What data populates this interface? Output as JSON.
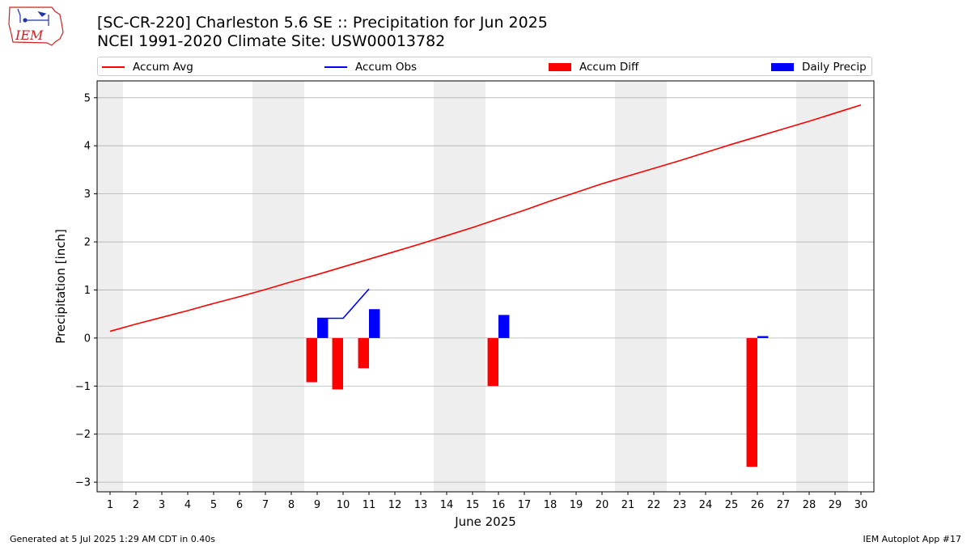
{
  "title": "[SC-CR-220] Charleston 5.6 SE :: Precipitation for Jun 2025",
  "subtitle": "NCEI 1991-2020 Climate Site: USW00013782",
  "logo_text": "IEM",
  "footer_left": "Generated at 5 Jul 2025 1:29 AM CDT in 0.40s",
  "footer_right": "IEM Autoplot App #17",
  "colors": {
    "accum_avg": "#ff0000",
    "accum_obs": "#0000ff",
    "accum_diff": "#ff0000",
    "daily_precip": "#0000ff",
    "weekend_shade": "#eeeeee",
    "grid": "#b0b0b0"
  },
  "chart_data": {
    "type": "bar",
    "xlabel": "June 2025",
    "ylabel": "Precipitation [inch]",
    "xlim": [
      0.5,
      30.5
    ],
    "ylim": [
      -3.2,
      5.35
    ],
    "grid": "horizontal",
    "legend_position": "top",
    "x": [
      1,
      2,
      3,
      4,
      5,
      6,
      7,
      8,
      9,
      10,
      11,
      12,
      13,
      14,
      15,
      16,
      17,
      18,
      19,
      20,
      21,
      22,
      23,
      24,
      25,
      26,
      27,
      28,
      29,
      30
    ],
    "x_tick_labels": [
      "1",
      "2",
      "3",
      "4",
      "5",
      "6",
      "7",
      "8",
      "9",
      "10",
      "11",
      "12",
      "13",
      "14",
      "15",
      "16",
      "17",
      "18",
      "19",
      "20",
      "21",
      "22",
      "23",
      "24",
      "25",
      "26",
      "27",
      "28",
      "29",
      "30"
    ],
    "y_ticks": [
      -3,
      -2,
      -1,
      0,
      1,
      2,
      3,
      4,
      5
    ],
    "y_tick_labels": [
      "−3",
      "−2",
      "−1",
      "0",
      "1",
      "2",
      "3",
      "4",
      "5"
    ],
    "weekend_shading": [
      [
        0.5,
        1.5
      ],
      [
        6.5,
        8.5
      ],
      [
        13.5,
        15.5
      ],
      [
        20.5,
        22.5
      ],
      [
        27.5,
        29.5
      ]
    ],
    "series": [
      {
        "name": "Accum Avg",
        "kind": "line",
        "x": [
          1,
          2,
          3,
          4,
          5,
          6,
          7,
          8,
          9,
          10,
          11,
          12,
          13,
          14,
          15,
          16,
          17,
          18,
          19,
          20,
          21,
          22,
          23,
          24,
          25,
          26,
          27,
          28,
          29,
          30
        ],
        "values": [
          0.14,
          0.29,
          0.43,
          0.57,
          0.72,
          0.86,
          1.01,
          1.17,
          1.32,
          1.48,
          1.64,
          1.8,
          1.96,
          2.13,
          2.3,
          2.48,
          2.66,
          2.85,
          3.03,
          3.21,
          3.37,
          3.53,
          3.69,
          3.86,
          4.03,
          4.19,
          4.35,
          4.51,
          4.68,
          4.85
        ]
      },
      {
        "name": "Accum Obs",
        "kind": "line",
        "x": [
          9,
          10,
          11
        ],
        "values": [
          0.41,
          0.41,
          1.02
        ]
      },
      {
        "name": "Accum Diff",
        "kind": "bar",
        "x": [
          9,
          10,
          11,
          16,
          26
        ],
        "values": [
          -0.92,
          -1.07,
          -0.63,
          -1.0,
          -2.68
        ]
      },
      {
        "name": "Daily Precip",
        "kind": "bar",
        "x": [
          9,
          11,
          16,
          26
        ],
        "values": [
          0.41,
          0.6,
          0.48,
          0.04
        ]
      }
    ]
  }
}
